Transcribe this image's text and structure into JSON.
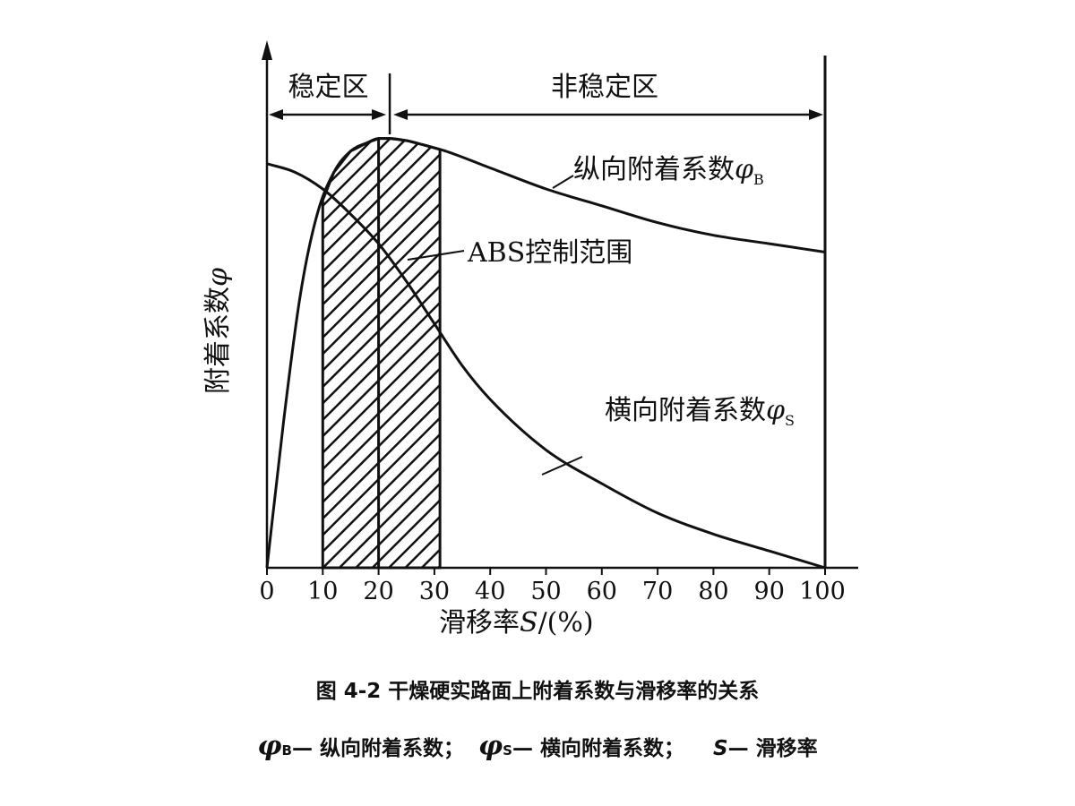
{
  "chart_data": {
    "type": "line",
    "xlabel_prefix": "滑移率",
    "xlabel_var": "S",
    "xlabel_unit": "/(%)",
    "ylabel_text": "附着系数",
    "ylabel_var": "φ",
    "xlim": [
      0,
      100
    ],
    "x_ticks": [
      0,
      10,
      20,
      30,
      40,
      50,
      60,
      70,
      80,
      90,
      100
    ],
    "regions": [
      {
        "label": "稳定区",
        "x_start": 0,
        "x_end": 22
      },
      {
        "label": "非稳定区",
        "x_start": 22,
        "x_end": 100
      }
    ],
    "shaded_band": {
      "label": "ABS控制范围",
      "x_start": 10,
      "x_end": 31
    },
    "series": [
      {
        "name": "纵向附着系数",
        "symbol": "φ",
        "subscript": "B",
        "x": [
          0,
          3,
          6,
          9,
          12,
          15,
          18,
          20,
          22,
          25,
          28,
          32,
          40,
          50,
          60,
          70,
          80,
          90,
          100
        ],
        "y": [
          0,
          0.35,
          0.65,
          0.84,
          0.94,
          0.99,
          1.01,
          1.02,
          1.02,
          1.015,
          1.005,
          0.99,
          0.95,
          0.9,
          0.86,
          0.82,
          0.79,
          0.77,
          0.75
        ]
      },
      {
        "name": "横向附着系数",
        "symbol": "φ",
        "subscript": "S",
        "x": [
          0,
          5,
          10,
          15,
          20,
          25,
          30,
          35,
          40,
          50,
          60,
          70,
          80,
          90,
          100
        ],
        "y": [
          0.96,
          0.94,
          0.9,
          0.84,
          0.77,
          0.68,
          0.58,
          0.48,
          0.4,
          0.28,
          0.2,
          0.13,
          0.08,
          0.04,
          0.0
        ]
      }
    ]
  },
  "caption": {
    "title": "图 4-2   干燥硬实路面上附着系数与滑移率的关系",
    "legend_phi": "φ",
    "legend_b_sub": "B",
    "legend_b_text": "— 纵向附着系数；",
    "legend_s_sub": "S",
    "legend_s_text": "— 横向附着系数；",
    "legend_var": "S",
    "legend_var_text": "— 滑移率"
  }
}
